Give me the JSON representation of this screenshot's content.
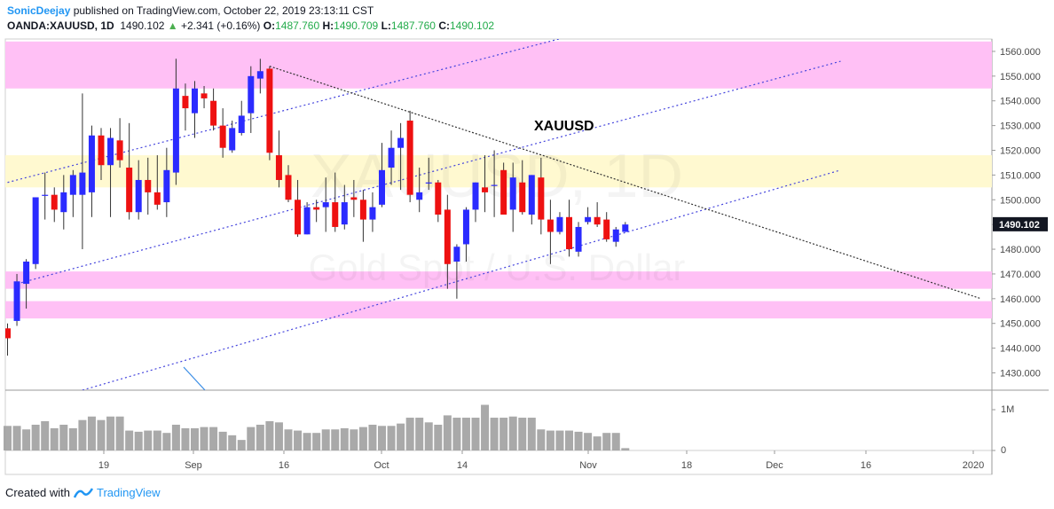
{
  "header": {
    "author": "SonicDeejay",
    "published_text": " published on TradingView.com, October 22, 2019 23:13:11 CST",
    "symbol": "OANDA:XAUUSD, 1D",
    "last": "1490.102",
    "change": "+2.341 (+0.16%)",
    "change_arrow": "▲",
    "o_label": "O:",
    "o_value": "1487.760",
    "h_label": "H:",
    "h_value": "1490.709",
    "l_label": "L:",
    "l_value": "1487.760",
    "c_label": "C:",
    "c_value": "1490.102"
  },
  "footer": {
    "created_with": "Created with",
    "brand": "TradingView"
  },
  "colors": {
    "up": "#2b2bff",
    "down": "#ee1111",
    "zone_pink": "#ffc0f5",
    "zone_yellow": "#fff9d0",
    "channel": "#4444dd",
    "trendline": "#333333",
    "volume": "#a0a0a0",
    "price_tag_bg": "#131722"
  },
  "chart_data": {
    "type": "candlestick",
    "symbol_label": "XAUUSD",
    "watermark_symbol": "XAUUSD, 1D",
    "watermark_name": "Gold Spot / U.S. Dollar",
    "ylim": [
      1423,
      1565
    ],
    "y_ticks": [
      "1560.000",
      "1550.000",
      "1540.000",
      "1530.000",
      "1520.000",
      "1510.000",
      "1500.000",
      "1490.000",
      "1480.000",
      "1470.000",
      "1460.000",
      "1450.000",
      "1440.000",
      "1430.000"
    ],
    "price_tag": "1490.102",
    "x_ticks": [
      "19",
      "Sep",
      "16",
      "Oct",
      "14",
      "Nov",
      "18",
      "Dec",
      "16",
      "2020"
    ],
    "volume_ticks": [
      "1M",
      "0"
    ],
    "zones": [
      {
        "kind": "resistance",
        "low": 1545,
        "high": 1564
      },
      {
        "kind": "pivot",
        "low": 1505,
        "high": 1518
      },
      {
        "kind": "support",
        "low": 1464,
        "high": 1471
      },
      {
        "kind": "support",
        "low": 1452,
        "high": 1459
      }
    ],
    "candles": [
      {
        "o": 1448,
        "h": 1450,
        "l": 1437,
        "c": 1444,
        "v": 0.42
      },
      {
        "o": 1451,
        "h": 1470,
        "l": 1449,
        "c": 1467,
        "v": 0.42
      },
      {
        "o": 1466,
        "h": 1476,
        "l": 1456,
        "c": 1475,
        "v": 0.36
      },
      {
        "o": 1474,
        "h": 1500,
        "l": 1472,
        "c": 1501,
        "v": 0.44
      },
      {
        "o": 1502,
        "h": 1511,
        "l": 1492,
        "c": 1502,
        "v": 0.5
      },
      {
        "o": 1502,
        "h": 1505,
        "l": 1491,
        "c": 1496,
        "v": 0.38
      },
      {
        "o": 1495,
        "h": 1510,
        "l": 1488,
        "c": 1503,
        "v": 0.44
      },
      {
        "o": 1502,
        "h": 1512,
        "l": 1493,
        "c": 1510,
        "v": 0.38
      },
      {
        "o": 1502,
        "h": 1543,
        "l": 1480,
        "c": 1511,
        "v": 0.52
      },
      {
        "o": 1503,
        "h": 1530,
        "l": 1493,
        "c": 1526,
        "v": 0.58
      },
      {
        "o": 1526,
        "h": 1529,
        "l": 1508,
        "c": 1514,
        "v": 0.52
      },
      {
        "o": 1514,
        "h": 1529,
        "l": 1493,
        "c": 1525,
        "v": 0.58
      },
      {
        "o": 1524,
        "h": 1533,
        "l": 1513,
        "c": 1516,
        "v": 0.58
      },
      {
        "o": 1513,
        "h": 1531,
        "l": 1492,
        "c": 1495,
        "v": 0.34
      },
      {
        "o": 1495,
        "h": 1516,
        "l": 1492,
        "c": 1508,
        "v": 0.32
      },
      {
        "o": 1508,
        "h": 1517,
        "l": 1494,
        "c": 1503,
        "v": 0.34
      },
      {
        "o": 1503,
        "h": 1518,
        "l": 1496,
        "c": 1498,
        "v": 0.34
      },
      {
        "o": 1499,
        "h": 1521,
        "l": 1493,
        "c": 1512,
        "v": 0.3
      },
      {
        "o": 1511,
        "h": 1557,
        "l": 1506,
        "c": 1545,
        "v": 0.44
      },
      {
        "o": 1542,
        "h": 1547,
        "l": 1528,
        "c": 1537,
        "v": 0.38
      },
      {
        "o": 1535,
        "h": 1548,
        "l": 1525,
        "c": 1545,
        "v": 0.38
      },
      {
        "o": 1543,
        "h": 1546,
        "l": 1537,
        "c": 1541,
        "v": 0.4
      },
      {
        "o": 1540,
        "h": 1545,
        "l": 1528,
        "c": 1530,
        "v": 0.4
      },
      {
        "o": 1530,
        "h": 1537,
        "l": 1517,
        "c": 1521,
        "v": 0.32
      },
      {
        "o": 1520,
        "h": 1532,
        "l": 1519,
        "c": 1529,
        "v": 0.26
      },
      {
        "o": 1527,
        "h": 1540,
        "l": 1526,
        "c": 1534,
        "v": 0.18
      },
      {
        "o": 1535,
        "h": 1554,
        "l": 1527,
        "c": 1550,
        "v": 0.4
      },
      {
        "o": 1549,
        "h": 1557,
        "l": 1543,
        "c": 1552,
        "v": 0.44
      },
      {
        "o": 1553,
        "h": 1554,
        "l": 1516,
        "c": 1519,
        "v": 0.5
      },
      {
        "o": 1518,
        "h": 1528,
        "l": 1505,
        "c": 1508,
        "v": 0.48
      },
      {
        "o": 1510,
        "h": 1514,
        "l": 1499,
        "c": 1500,
        "v": 0.36
      },
      {
        "o": 1500,
        "h": 1508,
        "l": 1485,
        "c": 1486,
        "v": 0.34
      },
      {
        "o": 1486,
        "h": 1499,
        "l": 1486,
        "c": 1497,
        "v": 0.3
      },
      {
        "o": 1497,
        "h": 1500,
        "l": 1491,
        "c": 1496,
        "v": 0.3
      },
      {
        "o": 1497,
        "h": 1509,
        "l": 1487,
        "c": 1499,
        "v": 0.36
      },
      {
        "o": 1499,
        "h": 1511,
        "l": 1487,
        "c": 1489,
        "v": 0.36
      },
      {
        "o": 1490,
        "h": 1506,
        "l": 1488,
        "c": 1499,
        "v": 0.38
      },
      {
        "o": 1501,
        "h": 1508,
        "l": 1493,
        "c": 1500,
        "v": 0.36
      },
      {
        "o": 1500,
        "h": 1504,
        "l": 1483,
        "c": 1492,
        "v": 0.4
      },
      {
        "o": 1492,
        "h": 1503,
        "l": 1487,
        "c": 1497,
        "v": 0.44
      },
      {
        "o": 1498,
        "h": 1523,
        "l": 1497,
        "c": 1512,
        "v": 0.42
      },
      {
        "o": 1513,
        "h": 1528,
        "l": 1506,
        "c": 1521,
        "v": 0.42
      },
      {
        "o": 1521,
        "h": 1531,
        "l": 1504,
        "c": 1525,
        "v": 0.46
      },
      {
        "o": 1532,
        "h": 1536,
        "l": 1499,
        "c": 1502,
        "v": 0.56
      },
      {
        "o": 1500,
        "h": 1513,
        "l": 1495,
        "c": 1503,
        "v": 0.56
      },
      {
        "o": 1507,
        "h": 1517,
        "l": 1504,
        "c": 1507,
        "v": 0.48
      },
      {
        "o": 1507,
        "h": 1508,
        "l": 1491,
        "c": 1494,
        "v": 0.44
      },
      {
        "o": 1496,
        "h": 1502,
        "l": 1464,
        "c": 1474,
        "v": 0.6
      },
      {
        "o": 1475,
        "h": 1482,
        "l": 1460,
        "c": 1481,
        "v": 0.56
      },
      {
        "o": 1482,
        "h": 1497,
        "l": 1475,
        "c": 1496,
        "v": 0.56
      },
      {
        "o": 1496,
        "h": 1507,
        "l": 1491,
        "c": 1507,
        "v": 0.56
      },
      {
        "o": 1505,
        "h": 1518,
        "l": 1495,
        "c": 1503,
        "v": 0.78
      },
      {
        "o": 1506,
        "h": 1520,
        "l": 1493,
        "c": 1506,
        "v": 0.56
      },
      {
        "o": 1512,
        "h": 1515,
        "l": 1494,
        "c": 1494,
        "v": 0.56
      },
      {
        "o": 1496,
        "h": 1515,
        "l": 1487,
        "c": 1509,
        "v": 0.58
      },
      {
        "o": 1507,
        "h": 1516,
        "l": 1494,
        "c": 1495,
        "v": 0.56
      },
      {
        "o": 1494,
        "h": 1510,
        "l": 1490,
        "c": 1510,
        "v": 0.56
      },
      {
        "o": 1509,
        "h": 1517,
        "l": 1486,
        "c": 1492,
        "v": 0.36
      },
      {
        "o": 1492,
        "h": 1500,
        "l": 1474,
        "c": 1487,
        "v": 0.34
      },
      {
        "o": 1487,
        "h": 1495,
        "l": 1486,
        "c": 1493,
        "v": 0.34
      },
      {
        "o": 1493,
        "h": 1500,
        "l": 1477,
        "c": 1480,
        "v": 0.34
      },
      {
        "o": 1479,
        "h": 1491,
        "l": 1477,
        "c": 1489,
        "v": 0.32
      },
      {
        "o": 1491,
        "h": 1497,
        "l": 1490,
        "c": 1493,
        "v": 0.3
      },
      {
        "o": 1493,
        "h": 1499,
        "l": 1489,
        "c": 1490,
        "v": 0.24
      },
      {
        "o": 1492,
        "h": 1495,
        "l": 1483,
        "c": 1484,
        "v": 0.3
      },
      {
        "o": 1483,
        "h": 1489,
        "l": 1481,
        "c": 1488,
        "v": 0.3
      },
      {
        "o": 1487,
        "h": 1491,
        "l": 1487,
        "c": 1490,
        "v": 0.04
      }
    ],
    "channel_upper": [
      [
        0,
        1507
      ],
      [
        66,
        1572
      ]
    ],
    "channel_middle": [
      [
        1,
        1466
      ],
      [
        89,
        1556
      ]
    ],
    "channel_lower": [
      [
        8,
        1423
      ],
      [
        89,
        1512
      ]
    ],
    "trendline": [
      [
        28,
        1554
      ],
      [
        104,
        1460
      ]
    ]
  }
}
